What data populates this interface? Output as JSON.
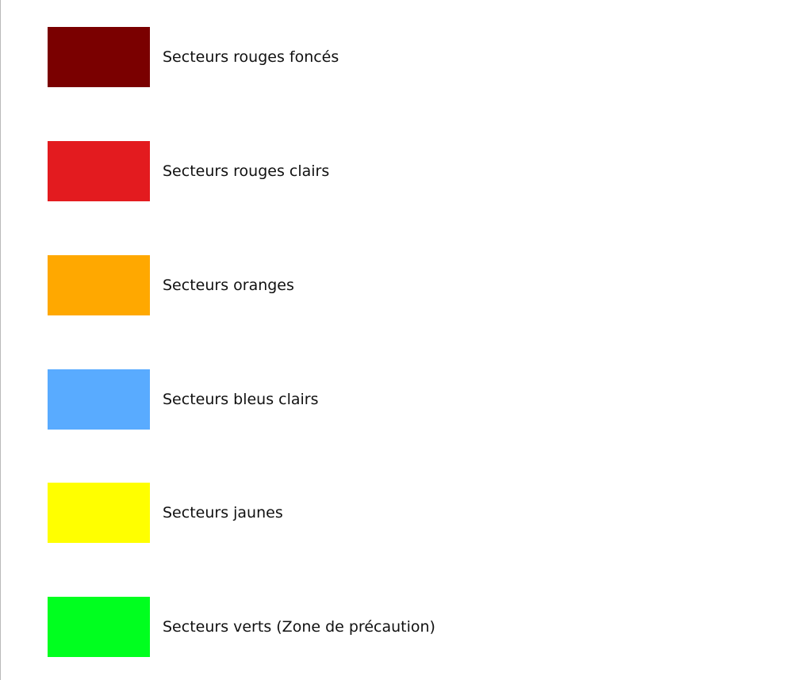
{
  "legend": {
    "items": [
      {
        "label": "Secteurs rouges foncés",
        "color": "#7a0000"
      },
      {
        "label": "Secteurs rouges clairs",
        "color": "#e31b1f"
      },
      {
        "label": "Secteurs oranges",
        "color": "#ffa800"
      },
      {
        "label": "Secteurs bleus clairs",
        "color": "#59abff"
      },
      {
        "label": "Secteurs jaunes",
        "color": "#ffff00"
      },
      {
        "label": "Secteurs verts (Zone de précaution)",
        "color": "#00ff1f"
      }
    ]
  }
}
